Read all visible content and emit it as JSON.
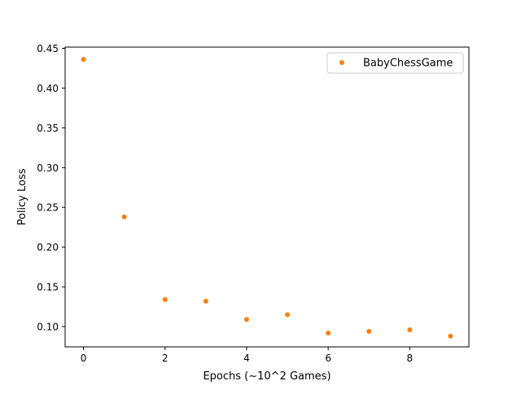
{
  "chart_data": {
    "type": "scatter",
    "xlabel": "Epochs (~10^2 Games)",
    "ylabel": "Policy Loss",
    "xlim": [
      -0.45,
      9.45
    ],
    "ylim": [
      0.0745,
      0.4515
    ],
    "x_ticks": [
      0,
      2,
      4,
      6,
      8
    ],
    "y_ticks": [
      0.1,
      0.15,
      0.2,
      0.25,
      0.3,
      0.35,
      0.4,
      0.45
    ],
    "x_tick_labels": [
      "0",
      "2",
      "4",
      "6",
      "8"
    ],
    "y_tick_labels": [
      "0.10",
      "0.15",
      "0.20",
      "0.25",
      "0.30",
      "0.35",
      "0.40",
      "0.45"
    ],
    "grid": false,
    "legend_position": "top-right",
    "series": [
      {
        "name": "BabyChessGame",
        "color": "#ff7f0e",
        "x": [
          0,
          1,
          2,
          3,
          4,
          5,
          6,
          7,
          8,
          9
        ],
        "y": [
          0.436,
          0.238,
          0.134,
          0.132,
          0.109,
          0.115,
          0.092,
          0.094,
          0.096,
          0.088
        ]
      }
    ]
  }
}
